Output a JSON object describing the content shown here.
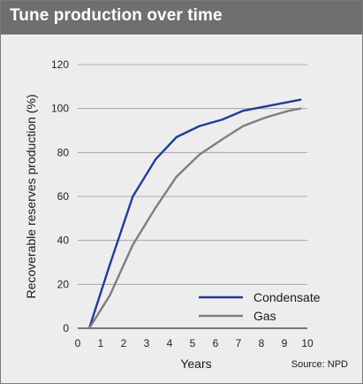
{
  "chart_data": {
    "type": "line",
    "title": "Tune production over time",
    "xlabel": "Years",
    "ylabel": "Recoverable reserves production (%)",
    "source": "Source: NPD",
    "xlim": [
      0,
      10
    ],
    "ylim": [
      0,
      120
    ],
    "xticks": [
      0,
      1,
      2,
      3,
      4,
      5,
      6,
      7,
      8,
      9,
      10
    ],
    "yticks": [
      0,
      20,
      40,
      60,
      80,
      100,
      120
    ],
    "grid": "horizontal",
    "legend_position": "bottom-right",
    "series": [
      {
        "name": "Condensate",
        "color": "#1f3d99",
        "x": [
          0.5,
          1.4,
          2.4,
          3.4,
          4.3,
          5.3,
          6.3,
          7.2,
          8.2,
          9.2,
          9.7
        ],
        "y": [
          0,
          29,
          60,
          77,
          87,
          92,
          95,
          99,
          101,
          103,
          104
        ]
      },
      {
        "name": "Gas",
        "color": "#7f7f7f",
        "x": [
          0.5,
          1.4,
          2.4,
          3.4,
          4.3,
          5.3,
          6.3,
          7.2,
          8.2,
          9.2,
          9.7
        ],
        "y": [
          0,
          15,
          38,
          55,
          69,
          79,
          86,
          92,
          96,
          99,
          100
        ]
      }
    ]
  }
}
